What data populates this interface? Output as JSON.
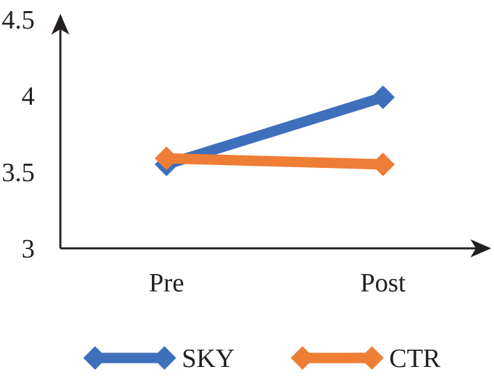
{
  "chart_data": {
    "type": "line",
    "categories": [
      "Pre",
      "Post"
    ],
    "series": [
      {
        "name": "SKY",
        "values": [
          3.55,
          3.99
        ],
        "color": "#3e6fbb"
      },
      {
        "name": "CTR",
        "values": [
          3.59,
          3.55
        ],
        "color": "#ee7d35"
      }
    ],
    "ylim": [
      3,
      4.5
    ],
    "yticks": [
      "3",
      "3.5",
      "4",
      "4.5"
    ],
    "grid": false,
    "legend_position": "bottom",
    "marker": "diamond",
    "axis_color": "#231f20"
  }
}
